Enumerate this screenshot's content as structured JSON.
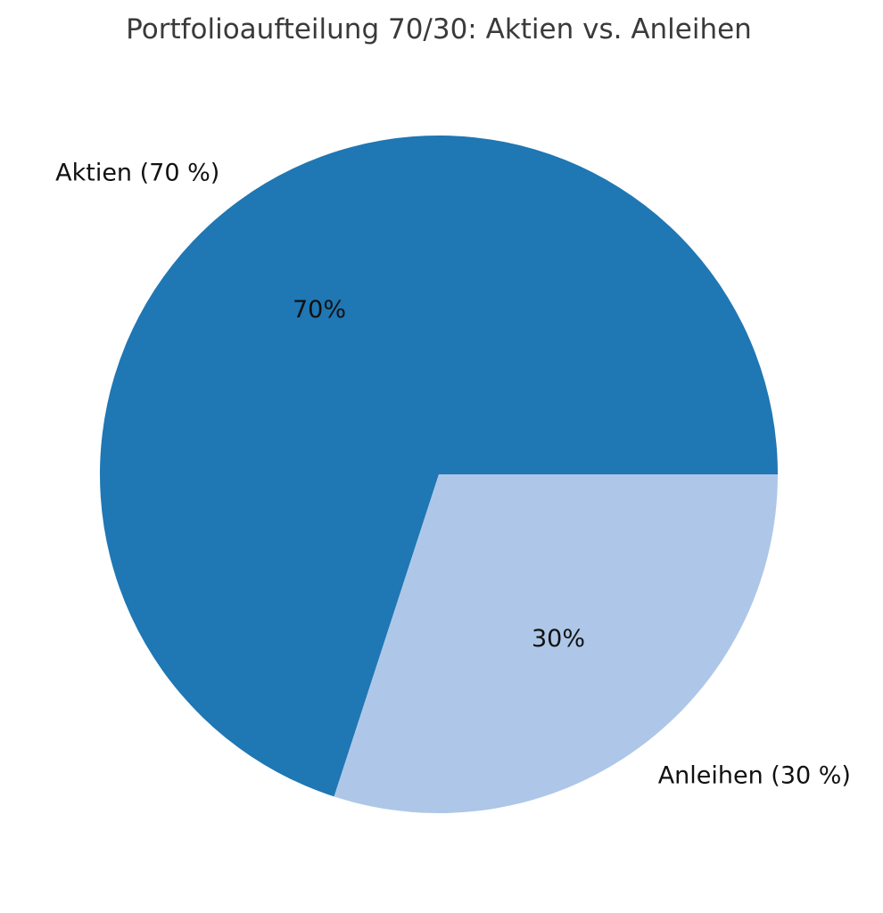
{
  "chart_data": {
    "type": "pie",
    "title": "Portfolioaufteilung 70/30: Aktien vs. Anleihen",
    "slices": [
      {
        "label": "Aktien (70 %)",
        "value": 70,
        "pct_label": "70%",
        "color": "#1f77b4"
      },
      {
        "label": "Anleihen (30 %)",
        "value": 30,
        "pct_label": "30%",
        "color": "#aec7e8"
      }
    ],
    "start_angle_deg": 0,
    "direction": "counterclockwise",
    "legend": "none"
  }
}
